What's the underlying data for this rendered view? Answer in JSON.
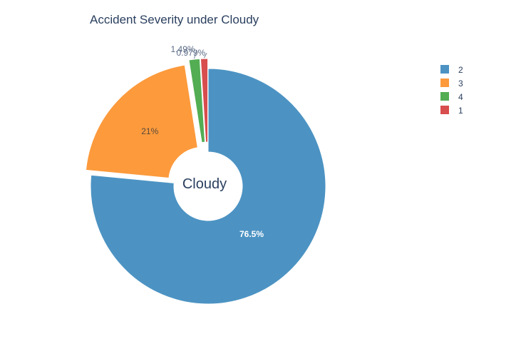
{
  "chart_data": {
    "type": "pie",
    "title": "Accident Severity under Cloudy",
    "center_label": "Cloudy",
    "hole": true,
    "slices": [
      {
        "label": "2",
        "value": 76.5,
        "text": "76.5%",
        "color": "#4c93c3",
        "text_color": "#ffffff",
        "text_position": "inside"
      },
      {
        "label": "3",
        "value": 21.0,
        "text": "21%",
        "color": "#fc9a3c",
        "text_color": "#5a4a3a",
        "text_position": "inside"
      },
      {
        "label": "4",
        "value": 1.49,
        "text": "1.49%",
        "color": "#53ad53",
        "text_color": "#5b6b86",
        "text_position": "outside"
      },
      {
        "label": "1",
        "value": 0.979,
        "text": "0.979%",
        "color": "#d84d4d",
        "text_color": "#5b6b86",
        "text_position": "outside"
      }
    ],
    "legend": {
      "placement": "top-right",
      "items": [
        "2",
        "3",
        "4",
        "1"
      ]
    }
  }
}
